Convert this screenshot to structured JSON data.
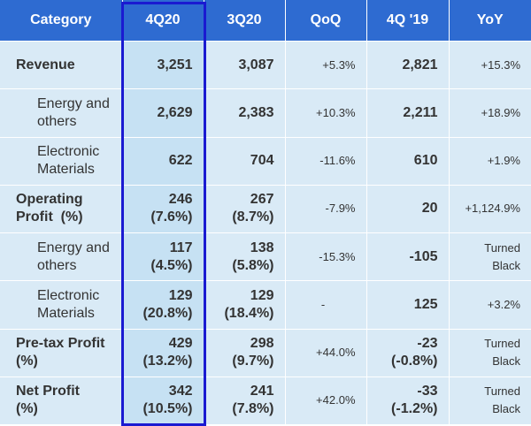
{
  "header": {
    "category": "Category",
    "q4_20": "4Q20",
    "q3_20": "3Q20",
    "qoq": "QoQ",
    "q4_19": "4Q '19",
    "yoy": "YoY"
  },
  "rows": [
    {
      "label_1": "Revenue",
      "label_2": "",
      "v4q20": "3,251",
      "v4q20_pct": "",
      "v3q20": "3,087",
      "v3q20_pct": "",
      "qoq": "+5.3%",
      "v4q19": "2,821",
      "v4q19_pct": "",
      "yoy": "+15.3%",
      "yoy_2": ""
    },
    {
      "label_1": "Energy and",
      "label_2": "others",
      "v4q20": "2,629",
      "v4q20_pct": "",
      "v3q20": "2,383",
      "v3q20_pct": "",
      "qoq": "+10.3%",
      "v4q19": "2,211",
      "v4q19_pct": "",
      "yoy": "+18.9%",
      "yoy_2": ""
    },
    {
      "label_1": "Electronic",
      "label_2": "Materials",
      "v4q20": "622",
      "v4q20_pct": "",
      "v3q20": "704",
      "v3q20_pct": "",
      "qoq": "-11.6%",
      "v4q19": "610",
      "v4q19_pct": "",
      "yoy": "+1.9%",
      "yoy_2": ""
    },
    {
      "label_1": "Operating",
      "label_2": "Profit",
      "label_unit": "(%)",
      "v4q20": "246",
      "v4q20_pct": "(7.6%)",
      "v3q20": "267",
      "v3q20_pct": "(8.7%)",
      "qoq": "-7.9%",
      "v4q19": "20",
      "v4q19_pct": "",
      "yoy": "+1,124.9%",
      "yoy_2": ""
    },
    {
      "label_1": "Energy and",
      "label_2": "others",
      "v4q20": "117",
      "v4q20_pct": "(4.5%)",
      "v3q20": "138",
      "v3q20_pct": "(5.8%)",
      "qoq": "-15.3%",
      "v4q19": "-105",
      "v4q19_pct": "",
      "yoy": "Turned",
      "yoy_2": "Black"
    },
    {
      "label_1": "Electronic",
      "label_2": "Materials",
      "v4q20": "129",
      "v4q20_pct": "(20.8%)",
      "v3q20": "129",
      "v3q20_pct": "(18.4%)",
      "qoq": "-",
      "v4q19": "125",
      "v4q19_pct": "",
      "yoy": "+3.2%",
      "yoy_2": ""
    },
    {
      "label_1": "Pre-tax Profit",
      "label_2": "(%)",
      "v4q20": "429",
      "v4q20_pct": "(13.2%)",
      "v3q20": "298",
      "v3q20_pct": "(9.7%)",
      "qoq": "+44.0%",
      "v4q19": "-23",
      "v4q19_pct": "(-0.8%)",
      "yoy": "Turned",
      "yoy_2": "Black"
    },
    {
      "label_1": "Net Profit",
      "label_2": "(%)",
      "v4q20": "342",
      "v4q20_pct": "(10.5%)",
      "v3q20": "241",
      "v3q20_pct": "(7.8%)",
      "qoq": "+42.0%",
      "v4q19": "-33",
      "v4q19_pct": "(-1.2%)",
      "yoy": "Turned",
      "yoy_2": "Black"
    }
  ],
  "colors": {
    "header_bg": "#2e6bd1",
    "cell_bg": "#d9eaf6",
    "highlight_border": "#1a1ad1"
  }
}
